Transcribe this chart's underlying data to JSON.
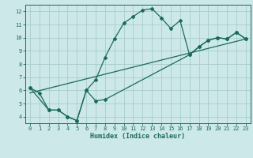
{
  "xlabel": "Humidex (Indice chaleur)",
  "bg_color": "#cce8e8",
  "grid_color": "#aacccc",
  "line_color": "#1a6b5a",
  "xlim": [
    -0.5,
    23.5
  ],
  "ylim": [
    3.5,
    12.5
  ],
  "xticks": [
    0,
    1,
    2,
    3,
    4,
    5,
    6,
    7,
    8,
    9,
    10,
    11,
    12,
    13,
    14,
    15,
    16,
    17,
    18,
    19,
    20,
    21,
    22,
    23
  ],
  "yticks": [
    4,
    5,
    6,
    7,
    8,
    9,
    10,
    11,
    12
  ],
  "series1_x": [
    0,
    1,
    2,
    3,
    4,
    5,
    6,
    7,
    8,
    9,
    10,
    11,
    12,
    13,
    14,
    15,
    16,
    17,
    18,
    19,
    20,
    21,
    22,
    23
  ],
  "series1_y": [
    6.2,
    5.8,
    4.5,
    4.5,
    4.0,
    3.7,
    6.0,
    6.8,
    8.5,
    9.9,
    11.1,
    11.6,
    12.1,
    12.2,
    11.5,
    10.7,
    11.3,
    8.7,
    9.3,
    9.8,
    10.0,
    9.9,
    10.4,
    9.9
  ],
  "series2_x": [
    0,
    2,
    3,
    4,
    5,
    6,
    7,
    8,
    17,
    18,
    19,
    20,
    21,
    22,
    23
  ],
  "series2_y": [
    6.2,
    4.5,
    4.5,
    4.0,
    3.7,
    6.0,
    5.2,
    5.3,
    8.7,
    9.3,
    9.8,
    10.0,
    9.9,
    10.4,
    9.9
  ],
  "series3_x": [
    0,
    23
  ],
  "series3_y": [
    5.8,
    9.9
  ]
}
